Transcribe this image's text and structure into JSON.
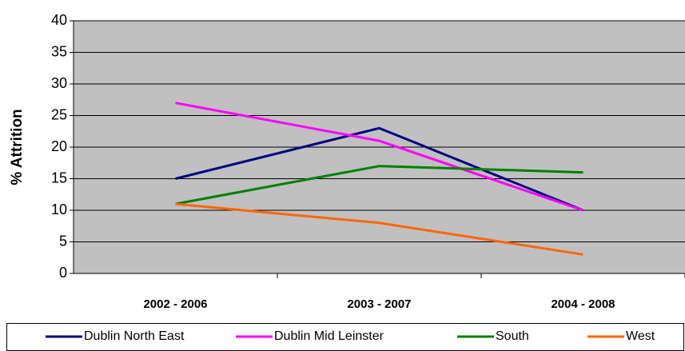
{
  "chart_data": {
    "type": "line",
    "y_label": "% Attrition",
    "categories": [
      "2002 - 2006",
      "2003 - 2007",
      "2004 - 2008"
    ],
    "series": [
      {
        "name": "Dublin North East",
        "color": "#000080",
        "values": [
          15,
          23,
          10
        ]
      },
      {
        "name": "Dublin Mid Leinster",
        "color": "#ff00ff",
        "values": [
          27,
          21,
          10
        ]
      },
      {
        "name": "South",
        "color": "#008000",
        "values": [
          11,
          17,
          16
        ]
      },
      {
        "name": "West",
        "color": "#ff6600",
        "values": [
          11,
          8,
          3
        ]
      }
    ],
    "ylim": [
      0,
      40
    ],
    "yticks": [
      0,
      5,
      10,
      15,
      20,
      25,
      30,
      35,
      40
    ],
    "grid": true,
    "legend": "bottom",
    "plot_background": "#c0c0c0"
  }
}
